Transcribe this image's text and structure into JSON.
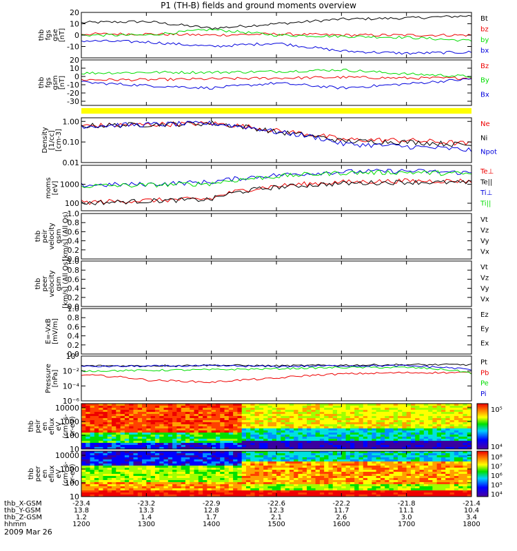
{
  "title": "P1 (TH-B) fields and ground moments overview",
  "date_label": "2009 Mar 26",
  "bottom_axis": {
    "rows": [
      {
        "name": "thb_X-GSM",
        "values": [
          "-23.4",
          "-23.2",
          "-22.9",
          "-22.6",
          "-22.2",
          "-21.8",
          "-21.4"
        ]
      },
      {
        "name": "thb_Y-GSM",
        "values": [
          "13.8",
          "13.3",
          "12.8",
          "12.3",
          "11.7",
          "11.1",
          "10.4"
        ]
      },
      {
        "name": "thb_Z-GSM",
        "values": [
          "1.2",
          "1.4",
          "1.7",
          "2.1",
          "2.6",
          "3.0",
          "3.4"
        ]
      },
      {
        "name": "hhmm",
        "values": [
          "1200",
          "1300",
          "1400",
          "1500",
          "1600",
          "1700",
          "1800"
        ]
      }
    ]
  },
  "colors": {
    "black": "#000000",
    "red": "#ee0000",
    "green": "#00dd00",
    "blue": "#0000dd",
    "yellow": "#ffff00"
  },
  "chart_data": [
    {
      "id": "fgs_gse",
      "type": "line",
      "ylabel_lines": [
        "thb",
        "fgs",
        "gse",
        "[nT]"
      ],
      "ylim": [
        -20,
        20
      ],
      "ticks": [
        "20",
        "10",
        "0",
        "-10"
      ],
      "tick_values": [
        20,
        10,
        0,
        -10
      ],
      "log": false,
      "x": [
        1200,
        1300,
        1400,
        1500,
        1600,
        1700,
        1800
      ],
      "series": [
        {
          "name": "Bt",
          "color": "#000000",
          "values": [
            11,
            12,
            6,
            10,
            14,
            15,
            17
          ]
        },
        {
          "name": "bz",
          "color": "#ee0000",
          "values": [
            1,
            1,
            0,
            1,
            0,
            0,
            0
          ]
        },
        {
          "name": "by",
          "color": "#00dd00",
          "values": [
            0,
            0,
            5,
            0,
            -1,
            -2,
            -5
          ]
        },
        {
          "name": "bx",
          "color": "#0000dd",
          "values": [
            -5,
            -6,
            -10,
            -7,
            -14,
            -16,
            -15
          ]
        }
      ]
    },
    {
      "id": "fgs_gsm",
      "type": "line",
      "ylabel_lines": [
        "thb",
        "fgs",
        "gsm",
        "[nT]"
      ],
      "ylim": [
        -35,
        20
      ],
      "ticks": [
        "20",
        "10",
        "0",
        "-10",
        "-20",
        "-30"
      ],
      "tick_values": [
        20,
        10,
        0,
        -10,
        -20,
        -30
      ],
      "log": false,
      "x": [
        1200,
        1300,
        1400,
        1500,
        1600,
        1700,
        1800
      ],
      "series": [
        {
          "name": "Bz",
          "color": "#ee0000",
          "values": [
            -4,
            -4,
            -3,
            -2,
            -1,
            -2,
            -2
          ]
        },
        {
          "name": "By",
          "color": "#00dd00",
          "values": [
            4,
            5,
            5,
            6,
            8,
            3,
            0
          ]
        },
        {
          "name": "Bx",
          "color": "#0000dd",
          "values": [
            -7,
            -11,
            -14,
            -8,
            -14,
            -9,
            -3
          ]
        }
      ]
    },
    {
      "id": "density",
      "type": "line",
      "ylabel_lines": [
        "Density",
        "[1/cc]",
        "[cm-3]"
      ],
      "ylim": [
        0.01,
        1.5
      ],
      "ticks": [
        "1.00",
        "0.10",
        "0.01"
      ],
      "tick_values": [
        1,
        0.1,
        0.01
      ],
      "log": true,
      "x": [
        1200,
        1300,
        1400,
        1500,
        1600,
        1700,
        1800
      ],
      "series": [
        {
          "name": "Ne",
          "color": "#ee0000",
          "values": [
            0.6,
            0.7,
            0.8,
            0.35,
            0.13,
            0.12,
            0.08
          ]
        },
        {
          "name": "Ni",
          "color": "#000000",
          "values": [
            0.6,
            0.7,
            0.8,
            0.3,
            0.11,
            0.1,
            0.07
          ]
        },
        {
          "name": "Npot",
          "color": "#0000dd",
          "values": [
            0.6,
            0.7,
            0.8,
            0.3,
            0.08,
            0.06,
            0.04
          ]
        }
      ]
    },
    {
      "id": "temperature",
      "type": "line",
      "ylabel_lines": [
        "moms",
        "[eV]"
      ],
      "ylim": [
        40,
        10000
      ],
      "ticks": [
        "1000",
        "100"
      ],
      "tick_values": [
        1000,
        100
      ],
      "log": true,
      "x": [
        1200,
        1300,
        1400,
        1500,
        1600,
        1700,
        1800
      ],
      "series": [
        {
          "name": "Te⊥",
          "color": "#ee0000",
          "values": [
            110,
            140,
            170,
            800,
            1300,
            1500,
            1500
          ]
        },
        {
          "name": "Te||",
          "color": "#000000",
          "values": [
            100,
            130,
            160,
            700,
            1100,
            1300,
            1200
          ]
        },
        {
          "name": "Ti⊥",
          "color": "#0000dd",
          "values": [
            900,
            1000,
            1300,
            3000,
            4500,
            5000,
            4000
          ]
        },
        {
          "name": "Ti||",
          "color": "#00dd00",
          "values": [
            800,
            900,
            1100,
            2600,
            4000,
            4300,
            3500
          ]
        }
      ]
    },
    {
      "id": "peir_velocity",
      "type": "line",
      "ylabel_lines": [
        "thb",
        "peir",
        "velocity",
        "gsm",
        "[km/s] (All Qs)"
      ],
      "ylim": [
        0,
        1
      ],
      "ticks": [
        "1.0",
        "0.8",
        "0.6",
        "0.4",
        "0.2",
        "0.0"
      ],
      "tick_values": [
        1,
        0.8,
        0.6,
        0.4,
        0.2,
        0
      ],
      "log": false,
      "series": [
        {
          "name": "Vt"
        },
        {
          "name": "Vz"
        },
        {
          "name": "Vy"
        },
        {
          "name": "Vx"
        }
      ]
    },
    {
      "id": "peer_velocity",
      "type": "line",
      "ylabel_lines": [
        "thb",
        "peer",
        "velocity",
        "gsm",
        "[km/s] (All Qs)"
      ],
      "ylim": [
        0,
        1
      ],
      "ticks": [
        "1.0",
        "0.8",
        "0.6",
        "0.4",
        "0.2",
        "0.0"
      ],
      "tick_values": [
        1,
        0.8,
        0.6,
        0.4,
        0.2,
        0
      ],
      "log": false,
      "series": [
        {
          "name": "Vt"
        },
        {
          "name": "Vz"
        },
        {
          "name": "Vy"
        },
        {
          "name": "Vx"
        }
      ]
    },
    {
      "id": "efield",
      "type": "line",
      "ylabel_lines": [
        "E=-VxB",
        "[mV/m]"
      ],
      "ylim": [
        0,
        1
      ],
      "ticks": [
        "1.0",
        "0.8",
        "0.6",
        "0.4",
        "0.2",
        "0.0"
      ],
      "tick_values": [
        1,
        0.8,
        0.6,
        0.4,
        0.2,
        0
      ],
      "log": false,
      "series": [
        {
          "name": "Ez"
        },
        {
          "name": "Ey"
        },
        {
          "name": "Ex"
        }
      ]
    },
    {
      "id": "pressure",
      "type": "line",
      "ylabel_lines": [
        "Pressure",
        "[nPa]"
      ],
      "ylim": [
        1e-06,
        1
      ],
      "ticks": [
        "10°",
        "10⁻²",
        "10⁻⁴",
        "10⁻⁶"
      ],
      "tick_values": [
        1,
        0.01,
        0.0001,
        1e-06
      ],
      "log": true,
      "x": [
        1200,
        1300,
        1400,
        1500,
        1600,
        1700,
        1800
      ],
      "series": [
        {
          "name": "Pt",
          "color": "#000000",
          "values": [
            0.05,
            0.05,
            0.06,
            0.05,
            0.06,
            0.07,
            0.07
          ]
        },
        {
          "name": "Pb",
          "color": "#ee0000",
          "values": [
            0.003,
            0.0006,
            0.0003,
            0.001,
            0.004,
            0.006,
            0.006
          ]
        },
        {
          "name": "Pe",
          "color": "#00dd00",
          "values": [
            0.01,
            0.012,
            0.015,
            0.02,
            0.03,
            0.03,
            0.005
          ]
        },
        {
          "name": "Pi",
          "color": "#0000dd",
          "values": [
            0.04,
            0.045,
            0.05,
            0.04,
            0.05,
            0.05,
            0.015
          ]
        }
      ]
    },
    {
      "id": "peir_spectrogram",
      "type": "heatmap",
      "ylabel_lines": [
        "thb",
        "peir",
        "en",
        "eflux",
        "eV",
        "(cm²-s-",
        "sr-eV)"
      ],
      "ylim": [
        10,
        20000
      ],
      "ticks": [
        "10000",
        "1000",
        "100",
        "10"
      ],
      "tick_values": [
        10000,
        1000,
        100,
        10
      ],
      "log": true,
      "colorbar_ticks": [
        "10⁵",
        "10⁴"
      ]
    },
    {
      "id": "peer_spectrogram",
      "type": "heatmap",
      "ylabel_lines": [
        "thb",
        "peer",
        "en",
        "eflux",
        "eV",
        "(cm²-s-",
        "sr-eV)"
      ],
      "ylim": [
        10,
        20000
      ],
      "ticks": [
        "10000",
        "1000",
        "100",
        "10"
      ],
      "tick_values": [
        10000,
        1000,
        100,
        10
      ],
      "log": true,
      "colorbar_ticks": [
        "10⁸",
        "10⁷",
        "10⁶",
        "10⁵",
        "10⁴"
      ]
    }
  ]
}
